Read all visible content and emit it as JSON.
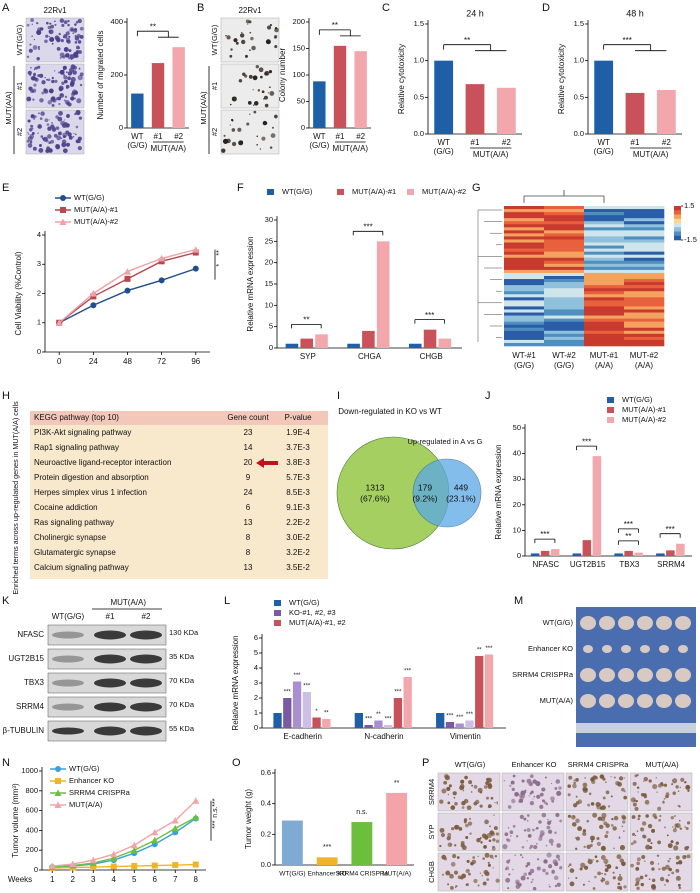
{
  "panels": [
    {
      "letter": "A",
      "type": "image_bar",
      "image_label": "22Rv1",
      "image_rows": [
        "WT(G/G)",
        "MUT(A/A)"
      ],
      "image_sublabels": [
        "#1",
        "#2"
      ],
      "categories": [
        "WT",
        "#1",
        "#2"
      ],
      "first_sublabel": "(G/G)",
      "group_label": "MUT(A/A)",
      "values": [
        130,
        245,
        305
      ],
      "colors": [
        "#1f5fa8",
        "#c9525a",
        "#f2a7ad"
      ],
      "ylim": [
        0,
        400
      ],
      "yticks": [
        0,
        200,
        400
      ],
      "ylabel": "Number of migrated cells",
      "significance": [
        "**"
      ]
    },
    {
      "letter": "B",
      "type": "image_bar",
      "image_label": "22Rv1",
      "image_rows": [
        "WT(G/G)",
        "MUT(A/A)"
      ],
      "image_sublabels": [
        "#1",
        "#2"
      ],
      "categories": [
        "WT",
        "#1",
        "#2"
      ],
      "first_sublabel": "(G/G)",
      "group_label": "MUT(A/A)",
      "values": [
        88,
        155,
        145
      ],
      "colors": [
        "#1f5fa8",
        "#c9525a",
        "#f2a7ad"
      ],
      "ylim": [
        0,
        200
      ],
      "yticks": [
        0,
        50,
        100,
        150,
        200
      ],
      "ylabel": "Colony number",
      "significance": [
        "**"
      ]
    },
    {
      "letter": "C",
      "type": "bar",
      "title": "24 h",
      "categories": [
        "WT",
        "#1",
        "#2"
      ],
      "first_sublabel": "(G/G)",
      "group_label": "MUT(A/A)",
      "values": [
        1.0,
        0.68,
        0.63
      ],
      "colors": [
        "#1f5fa8",
        "#c9525a",
        "#f2a7ad"
      ],
      "ylim": [
        0,
        1.5
      ],
      "yticks": [
        {
          "value": 0,
          "label": "0.0"
        },
        0.5,
        {
          "value": 1,
          "label": "1.0"
        },
        1.5
      ],
      "ylabel": "Relative cytotoxicity",
      "significance": [
        "**"
      ]
    },
    {
      "letter": "D",
      "type": "bar",
      "title": "48 h",
      "categories": [
        "WT",
        "#1",
        "#2"
      ],
      "first_sublabel": "(G/G)",
      "group_label": "MUT(A/A)",
      "values": [
        1.0,
        0.56,
        0.6
      ],
      "colors": [
        "#1f5fa8",
        "#c9525a",
        "#f2a7ad"
      ],
      "ylim": [
        0,
        1.5
      ],
      "yticks": [
        {
          "value": 0,
          "label": "0.0"
        },
        0.5,
        {
          "value": 1,
          "label": "1.0"
        },
        1.5
      ],
      "ylabel": "Relative cytotoxicity",
      "significance": [
        "***"
      ]
    },
    {
      "letter": "E",
      "type": "line",
      "x": [
        0,
        24,
        48,
        72,
        96
      ],
      "xlim": [
        -10,
        106
      ],
      "xticks": [
        0,
        24,
        48,
        72,
        96
      ],
      "ylim": [
        0,
        4
      ],
      "yticks": [
        0,
        1,
        2,
        3,
        4
      ],
      "ylabel": "Cell Viability (%Control)",
      "series": [
        {
          "name": "WT(G/G)",
          "color": "#1f4e8c",
          "marker": "circle",
          "values": [
            1,
            1.6,
            2.1,
            2.45,
            2.85
          ]
        },
        {
          "name": "MUT(A/A)-#1",
          "color": "#b8474f",
          "marker": "square",
          "values": [
            1,
            1.9,
            2.5,
            3.1,
            3.4
          ]
        },
        {
          "name": "MUT(A/A)-#2",
          "color": "#f0a0a7",
          "marker": "triangle",
          "values": [
            1,
            2.0,
            2.75,
            3.2,
            3.5
          ]
        }
      ],
      "significance": [
        "**",
        "*"
      ]
    },
    {
      "letter": "F",
      "type": "grouped_bar",
      "categories": [
        "SYP",
        "CHGA",
        "CHGB"
      ],
      "ylim": [
        0,
        30
      ],
      "yticks": [
        0,
        5,
        10,
        15,
        20,
        25,
        30
      ],
      "ylabel": "Relative mRNA expression",
      "series": [
        {
          "name": "WT(G/G)",
          "color": "#1f5fa8",
          "values": [
            1,
            1,
            1
          ]
        },
        {
          "name": "MUT(A/A)-#1",
          "color": "#c9525a",
          "values": [
            2.2,
            4,
            4.3
          ]
        },
        {
          "name": "MUT(A/A)-#2",
          "color": "#f2a7ad",
          "values": [
            3.2,
            25,
            2.2
          ]
        }
      ],
      "significance": [
        [
          "**"
        ],
        [
          "***"
        ],
        [
          "***"
        ]
      ]
    },
    {
      "letter": "G",
      "type": "heatmap",
      "columns": [
        "WT-#1",
        "WT-#2",
        "MUT-#1",
        "MUT-#2"
      ],
      "column_sublabels": [
        "(G/G)",
        "(G/G)",
        "(A/A)",
        "(A/A)"
      ],
      "colorbar_ticks": [
        1.5,
        -1.5
      ]
    },
    {
      "letter": "H",
      "type": "table",
      "side_label": "Enriched terms across up-regulated genes in MUT(A/A) cells",
      "header": [
        "KEGG pathway (top 10)",
        "Gene count",
        "P-value"
      ],
      "rows": [
        [
          "PI3K-Akt signaling pathway",
          "23",
          "1.9E-4"
        ],
        [
          "Rap1 signaling pathway",
          "14",
          "3.7E-3"
        ],
        [
          "Neuroactive ligand-receptor interaction",
          "20",
          "3.8E-3"
        ],
        [
          "Protein digestion and absorption",
          "9",
          "5.7E-3"
        ],
        [
          "Herpes simplex virus 1 infection",
          "24",
          "8.5E-3"
        ],
        [
          "Cocaine addiction",
          "6",
          "9.1E-3"
        ],
        [
          "Ras signaling pathway",
          "13",
          "2.2E-2"
        ],
        [
          "Cholinergic synapse",
          "8",
          "3.0E-2"
        ],
        [
          "Glutamatergic synapse",
          "8",
          "3.2E-2"
        ],
        [
          "Calcium signaling pathway",
          "13",
          "3.5E-2"
        ]
      ]
    },
    {
      "letter": "I",
      "type": "venn",
      "left_label": "Down-regulated in KO vs WT",
      "right_label": "Up-regulated in A vs G",
      "counts": [
        1313,
        179,
        449
      ],
      "percent_labels": [
        "(67.6%)",
        "(9.2%)",
        "(23.1%)"
      ]
    },
    {
      "letter": "J",
      "type": "grouped_bar",
      "categories": [
        "NFASC",
        "UGT2B15",
        "TBX3",
        "SRRM4"
      ],
      "ylim": [
        0,
        50
      ],
      "yticks": [
        0,
        10,
        20,
        30,
        40,
        50
      ],
      "ylabel": "Relative mRNA expression",
      "series": [
        {
          "name": "WT(G/G)",
          "color": "#1f5fa8",
          "values": [
            1,
            1,
            1,
            1
          ]
        },
        {
          "name": "MUT(A/A)-#1",
          "color": "#c9525a",
          "values": [
            2,
            6.2,
            2,
            2.2
          ]
        },
        {
          "name": "MUT(A/A)-#2",
          "color": "#f2a7ad",
          "values": [
            2.7,
            39,
            1.3,
            4.8
          ]
        }
      ],
      "significance": [
        [
          "***"
        ],
        [
          "***"
        ],
        [
          "**",
          "***"
        ],
        [
          "***"
        ]
      ]
    },
    {
      "letter": "K",
      "type": "blot",
      "header": "MUT(A/A)",
      "lanes": [
        "WT(G/G)",
        "#1",
        "#2"
      ],
      "bands": [
        "NFASC",
        "UGT2B15",
        "TBX3",
        "SRRM4",
        "β-TUBULIN"
      ],
      "sizes": [
        "130 KDa",
        "35 KDa",
        "70 KDa",
        "70 KDa",
        "55 KDa"
      ]
    },
    {
      "letter": "L",
      "type": "grouped_bar",
      "categories": [
        "E-cadherin",
        "N-cadherin",
        "Vimentin"
      ],
      "ylim": [
        0,
        6
      ],
      "yticks": [
        0,
        1,
        2,
        3,
        4,
        5,
        6
      ],
      "ylabel": "Relative mRNA expression",
      "legend": [
        "WT(G/G)",
        "KO-#1, #2, #3",
        "MUT(A/A)-#1, #2"
      ],
      "series": [
        {
          "color": "#1f5fa8",
          "values": [
            1,
            1,
            1
          ]
        },
        {
          "color": "#7a5aa6",
          "values": [
            2.0,
            0.2,
            0.4
          ],
          "significance": [
            "***",
            "***",
            "***"
          ]
        },
        {
          "color": "#a88fcf",
          "values": [
            3.1,
            0.5,
            0.3
          ],
          "significance": [
            "***",
            "**",
            "***"
          ]
        },
        {
          "color": "#cdbfe6",
          "values": [
            2.4,
            0.2,
            0.5
          ],
          "significance": [
            "***",
            "***",
            "***"
          ]
        },
        {
          "color": "#c9525a",
          "values": [
            0.7,
            2.0,
            4.8
          ],
          "significance": [
            "*",
            "***",
            "**"
          ]
        },
        {
          "color": "#f2a7ad",
          "values": [
            0.6,
            3.4,
            4.9
          ],
          "significance": [
            "**",
            "***",
            "***"
          ]
        }
      ]
    },
    {
      "letter": "M",
      "type": "photo",
      "rows": [
        "WT(G/G)",
        "Enhancer KO",
        "SRRM4 CRISPRa",
        "MUT(A/A)"
      ]
    },
    {
      "letter": "N",
      "type": "line",
      "xlabel": "Weeks",
      "x": [
        1,
        2,
        3,
        4,
        5,
        6,
        7,
        8
      ],
      "xlim": [
        0.5,
        8.5
      ],
      "xticks": [
        1,
        2,
        3,
        4,
        5,
        6,
        7,
        8
      ],
      "ylim": [
        0,
        1000
      ],
      "yticks": [
        0,
        200,
        400,
        600,
        800,
        1000
      ],
      "ylabel": "Tumor volume (mm³)",
      "series": [
        {
          "name": "WT(G/G)",
          "color": "#3aa0d8",
          "marker": "circle",
          "values": [
            30,
            40,
            60,
            100,
            170,
            260,
            380,
            520
          ]
        },
        {
          "name": "Enhancer KO",
          "color": "#f0b429",
          "marker": "square",
          "values": [
            20,
            25,
            30,
            35,
            40,
            45,
            50,
            55
          ]
        },
        {
          "name": "SRRM4 CRISPRa",
          "color": "#6bbf3c",
          "marker": "triangle",
          "values": [
            30,
            45,
            70,
            120,
            200,
            300,
            420,
            530
          ]
        },
        {
          "name": "MUT(A/A)",
          "color": "#f4a3a8",
          "marker": "triangle",
          "values": [
            40,
            60,
            100,
            160,
            250,
            380,
            500,
            700
          ]
        }
      ],
      "significance": [
        "***",
        "n.s.",
        "***"
      ]
    },
    {
      "letter": "O",
      "type": "bar",
      "categories": [
        "WT(G/G)",
        "Enhancer KO",
        "SRRM4 CRISPRa",
        "MUT(A/A)"
      ],
      "values": [
        0.29,
        0.05,
        0.28,
        0.47
      ],
      "colors": [
        "#7eaad4",
        "#f0b429",
        "#6bbf3c",
        "#f4a3a8"
      ],
      "ylim": [
        0,
        0.6
      ],
      "yticks": [
        {
          "value": 0,
          "label": "0.0"
        },
        0.2,
        0.4,
        0.6
      ],
      "ylabel": "Tumor weight (g)",
      "significance": [
        "***",
        "n.s.",
        "**"
      ]
    },
    {
      "letter": "P",
      "type": "ihc",
      "columns": [
        "WT(G/G)",
        "Enhancer KO",
        "SRRM4 CRISPRa",
        "MUT(A/A)"
      ],
      "rows": [
        "SRRM4",
        "SYP",
        "CHGB"
      ]
    }
  ]
}
